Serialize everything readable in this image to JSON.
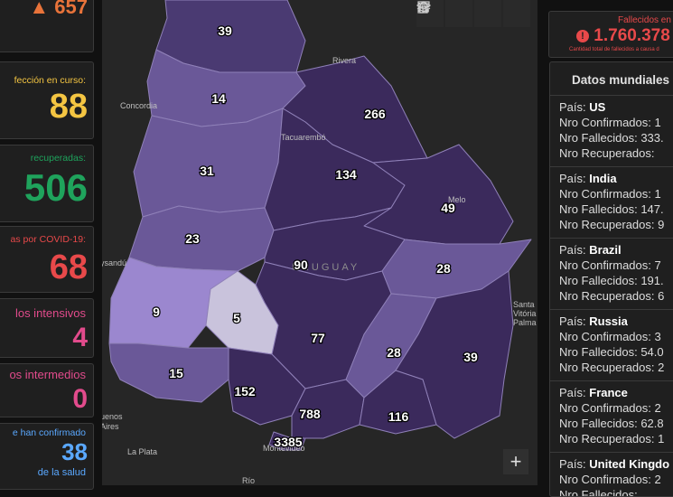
{
  "left_stats": {
    "top_count": "657",
    "infection": {
      "label": "fección en curso:",
      "value": "88"
    },
    "recovered": {
      "label": "recuperadas:",
      "value": "506"
    },
    "deaths": {
      "label": "as por COVID-19:",
      "value": "68"
    },
    "intensive": {
      "label": "los intensivos",
      "value": "4"
    },
    "intermediate": {
      "label": "os intermedios",
      "value": "0"
    },
    "health": {
      "label": "e han confirmado",
      "value": "38",
      "label2": "de la salud"
    }
  },
  "global_deaths": {
    "label": "Fallecidos en",
    "value": "1.760.378",
    "caption": "Cantidad total de fallecidos a causa d"
  },
  "world_data": {
    "title": "Datos mundiales",
    "field_labels": {
      "country": "País: ",
      "confirmed": "Nro Confirmados: ",
      "deaths": "Nro Fallecidos: ",
      "recovered": "Nro Recuperados: "
    },
    "countries": [
      {
        "name": "US",
        "confirmed": "1",
        "deaths": "333.",
        "recovered": ""
      },
      {
        "name": "India",
        "confirmed": "1",
        "deaths": "147.",
        "recovered": "9"
      },
      {
        "name": "Brazil",
        "confirmed": "7",
        "deaths": "191.",
        "recovered": "6"
      },
      {
        "name": "Russia",
        "confirmed": "3",
        "deaths": "54.0",
        "recovered": "2"
      },
      {
        "name": "France",
        "confirmed": "2",
        "deaths": "62.8",
        "recovered": "1"
      },
      {
        "name": "United Kingdo",
        "confirmed": "2",
        "deaths": "",
        "recovered": ""
      }
    ]
  },
  "map": {
    "place_labels": {
      "rivera": "Rivera",
      "concordia": "Concordia",
      "tacuarembo": "Tacuarembó",
      "melo": "Melo",
      "uruguay": "URUGUAY",
      "paysandu": "ysandú",
      "santa_vitoria": "Santa\nVitória do\nPalma",
      "buenos_aires": "uenos\nAires",
      "la_plata": "La Plata",
      "montevideo": "Montevideo",
      "rio": "Río"
    },
    "departments": [
      {
        "name": "artigas",
        "cases": "39"
      },
      {
        "name": "salto",
        "cases": "14"
      },
      {
        "name": "rivera",
        "cases": "266"
      },
      {
        "name": "paysandu",
        "cases": "31"
      },
      {
        "name": "tacuarembo",
        "cases": "134"
      },
      {
        "name": "cerro-largo",
        "cases": "49"
      },
      {
        "name": "rio-negro",
        "cases": "23"
      },
      {
        "name": "durazno",
        "cases": "90"
      },
      {
        "name": "treinta-y-tres",
        "cases": "28"
      },
      {
        "name": "soriano",
        "cases": "9"
      },
      {
        "name": "flores",
        "cases": "5"
      },
      {
        "name": "florida",
        "cases": "77"
      },
      {
        "name": "lavalleja",
        "cases": "28"
      },
      {
        "name": "rocha",
        "cases": "39"
      },
      {
        "name": "colonia",
        "cases": "15"
      },
      {
        "name": "san-jose",
        "cases": "152"
      },
      {
        "name": "canelones",
        "cases": "788"
      },
      {
        "name": "maldonado",
        "cases": "116"
      },
      {
        "name": "montevideo",
        "cases": "3385"
      }
    ],
    "colors": {
      "darkest": "#3b2a5c",
      "dark": "#4a3a72",
      "mid": "#6a5898",
      "light": "#9b87cf",
      "lightest": "#c9c3dc"
    }
  },
  "toolbar": {
    "icons": [
      "home-icon",
      "list-icon",
      "layers-icon",
      "qr-icon"
    ]
  },
  "zoom_in_label": "+",
  "colors": {
    "orange": "#e8733a",
    "yellow": "#f4c542",
    "green": "#1fa35c",
    "red": "#e8494a",
    "pink": "#e24b8c",
    "blue": "#5aa8ff"
  }
}
